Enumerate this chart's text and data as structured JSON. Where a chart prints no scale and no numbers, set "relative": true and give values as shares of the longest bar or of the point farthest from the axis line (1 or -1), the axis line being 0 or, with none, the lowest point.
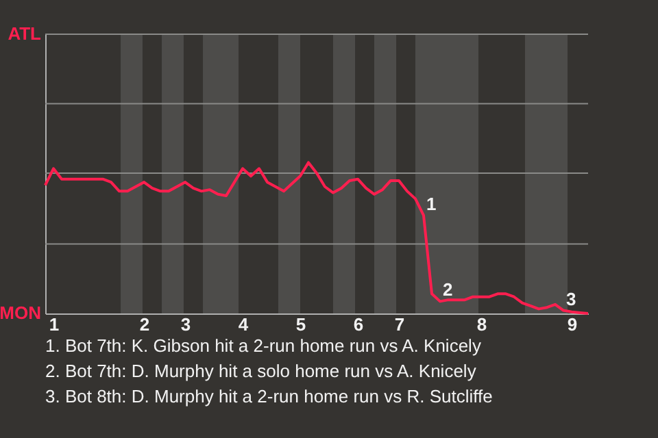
{
  "chart_data": {
    "type": "line",
    "relative": true,
    "categories": [
      null,
      "1",
      null,
      null,
      null,
      null,
      null,
      null,
      null,
      null,
      null,
      null,
      "2",
      null,
      null,
      null,
      null,
      "3",
      null,
      null,
      null,
      null,
      null,
      null,
      "4",
      null,
      null,
      null,
      null,
      null,
      null,
      "5",
      null,
      null,
      null,
      null,
      null,
      null,
      "6",
      null,
      null,
      null,
      null,
      "7",
      null,
      null,
      null,
      null,
      null,
      null,
      null,
      null,
      null,
      "8",
      null,
      null,
      null,
      null,
      null,
      null,
      null,
      null,
      null,
      null,
      "9",
      null,
      null
    ],
    "series": [
      {
        "color": "#ff1f4f",
        "values": [
          0.85,
          0.96,
          0.89,
          0.89,
          0.89,
          0.89,
          0.89,
          0.89,
          0.87,
          0.81,
          0.81,
          0.84,
          0.87,
          0.83,
          0.81,
          0.81,
          0.84,
          0.87,
          0.83,
          0.81,
          0.82,
          0.79,
          0.78,
          0.87,
          0.96,
          0.91,
          0.96,
          0.87,
          0.84,
          0.81,
          0.86,
          0.91,
          1,
          0.93,
          0.84,
          0.8,
          0.83,
          0.88,
          0.89,
          0.83,
          0.79,
          0.82,
          0.88,
          0.88,
          0.81,
          0.76,
          0.65,
          0.13,
          0.08,
          0.09,
          0.09,
          0.09,
          0.11,
          0.11,
          0.11,
          0.13,
          0.13,
          0.11,
          0.07,
          0.05,
          0.03,
          0.04,
          0.06,
          0.02,
          0.01,
          0.005,
          0
        ]
      }
    ],
    "marker": "none",
    "line_style": "solid",
    "ref_lines": [
      {
        "axis": "y",
        "value": 0.46,
        "color": "#8a8a88"
      },
      {
        "axis": "y",
        "value": 0.93,
        "color": "#8a8a88"
      },
      {
        "axis": "y",
        "value": 1.39,
        "color": "#8a8a88"
      },
      {
        "axis": "y",
        "value": 1.85,
        "color": "#8a8a88"
      }
    ],
    "annotations": [
      {
        "text": "1",
        "y": 0.65
      },
      {
        "text": "2",
        "y": 0.08
      },
      {
        "text": "3",
        "y": 0.02
      },
      "ATL",
      "MON",
      "1. Bot 7th: K. Gibson hit a 2-run home run vs A. Knicely",
      "2. Bot 7th: D. Murphy hit a solo home run vs A. Knicely",
      "3. Bot 8th: D. Murphy hit a 2-run home run vs R. Sutcliffe"
    ]
  }
}
